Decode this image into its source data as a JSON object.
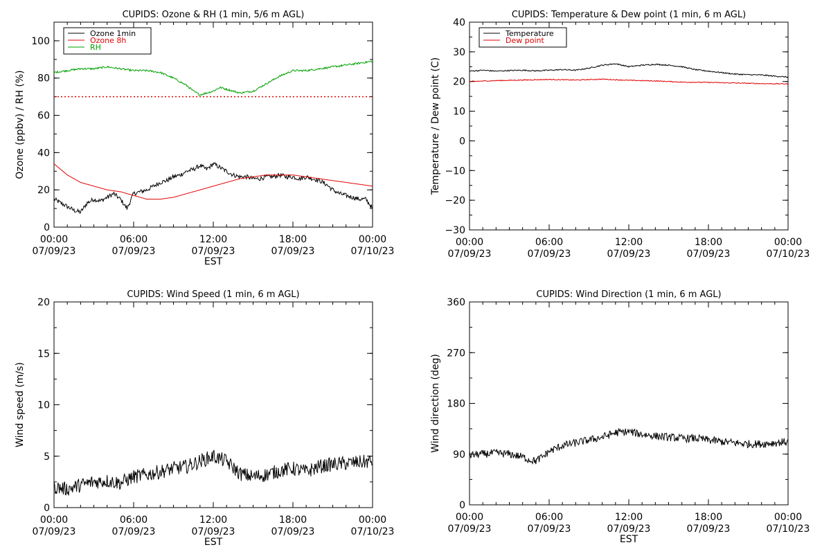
{
  "chart_data": [
    {
      "type": "line",
      "title": "CUPIDS: Ozone & RH (1 min, 5/6 m AGL)",
      "xlabel": "EST",
      "ylabel": "Ozone (ppbv) / RH (%)",
      "xlim": [
        "07/09/23 00:00",
        "07/10/23 00:00"
      ],
      "ylim": [
        0,
        110
      ],
      "x_ticks": [
        {
          "time": "00:00",
          "date": "07/09/23"
        },
        {
          "time": "06:00",
          "date": "07/09/23"
        },
        {
          "time": "12:00",
          "date": "07/09/23"
        },
        {
          "time": "18:00",
          "date": "07/09/23"
        },
        {
          "time": "00:00",
          "date": "07/10/23"
        }
      ],
      "y_ticks": [
        "0",
        "20",
        "40",
        "60",
        "80",
        "100"
      ],
      "y_tick_values": [
        0,
        20,
        40,
        60,
        80,
        100
      ],
      "legend_position": "top-left",
      "reference_line": {
        "y": 70,
        "color": "#e00000",
        "style": "dotted"
      },
      "series": [
        {
          "name": "Ozone 1min",
          "color": "#000000",
          "noise": 1.2,
          "hours": [
            0,
            0.5,
            1,
            1.5,
            2,
            2.5,
            3,
            3.5,
            4,
            4.5,
            5,
            5.5,
            6,
            6.5,
            7,
            7.5,
            8,
            8.5,
            9,
            9.5,
            10,
            10.5,
            11,
            11.5,
            12,
            12.5,
            13,
            13.5,
            14,
            14.5,
            15,
            15.5,
            16,
            16.5,
            17,
            17.5,
            18,
            18.5,
            19,
            19.5,
            20,
            20.5,
            21,
            21.5,
            22,
            22.5,
            23,
            23.5,
            24
          ],
          "values": [
            15,
            13,
            11,
            9,
            8,
            13,
            15,
            14,
            16,
            18,
            15,
            10,
            18,
            19,
            20,
            22,
            24,
            25,
            27,
            28,
            30,
            31,
            33,
            31,
            34,
            32,
            30,
            28,
            27,
            27,
            26,
            26,
            27,
            27,
            28,
            27,
            27,
            26,
            27,
            26,
            25,
            23,
            20,
            18,
            17,
            16,
            15,
            15,
            10
          ]
        },
        {
          "name": "Ozone 8h",
          "color": "#e00000",
          "noise": 0,
          "hours": [
            0,
            1,
            2,
            3,
            4,
            5,
            6,
            7,
            8,
            9,
            10,
            11,
            12,
            13,
            14,
            15,
            16,
            17,
            18,
            19,
            20,
            21,
            22,
            23,
            24
          ],
          "values": [
            34,
            28,
            24,
            22,
            20,
            19,
            17,
            15,
            15,
            16,
            18,
            20,
            22,
            24,
            26,
            27,
            28,
            28,
            28,
            27,
            26,
            25,
            24,
            23,
            22
          ]
        },
        {
          "name": "RH",
          "color": "#00a000",
          "noise": 0.5,
          "hours": [
            0,
            1,
            2,
            3,
            4,
            5,
            6,
            7,
            8,
            9,
            10,
            10.5,
            11,
            11.5,
            12,
            12.5,
            13,
            13.5,
            14,
            15,
            16,
            17,
            18,
            19,
            20,
            21,
            22,
            23,
            24
          ],
          "values": [
            83,
            84,
            85,
            85,
            86,
            85,
            84,
            84,
            83,
            80,
            76,
            73,
            71,
            72,
            73,
            75,
            74,
            73,
            72,
            73,
            77,
            81,
            84,
            84,
            85,
            86,
            87,
            88,
            89
          ]
        }
      ]
    },
    {
      "type": "line",
      "title": "CUPIDS: Temperature & Dew point (1 min, 6 m AGL)",
      "xlabel": "",
      "ylabel": "Temperature / Dew point (C)",
      "xlim": [
        "07/09/23 00:00",
        "07/10/23 00:00"
      ],
      "ylim": [
        -30,
        40
      ],
      "x_ticks": [
        {
          "time": "00:00",
          "date": "07/09/23"
        },
        {
          "time": "06:00",
          "date": "07/09/23"
        },
        {
          "time": "12:00",
          "date": "07/09/23"
        },
        {
          "time": "18:00",
          "date": "07/09/23"
        },
        {
          "time": "00:00",
          "date": "07/10/23"
        }
      ],
      "y_ticks": [
        "−30",
        "−20",
        "−10",
        "0",
        "10",
        "20",
        "30",
        "40"
      ],
      "y_tick_values": [
        -30,
        -20,
        -10,
        0,
        10,
        20,
        30,
        40
      ],
      "legend_position": "top-left",
      "series": [
        {
          "name": "Temperature",
          "color": "#000000",
          "noise": 0.2,
          "hours": [
            0,
            1,
            2,
            3,
            4,
            5,
            6,
            7,
            8,
            9,
            10,
            11,
            12,
            13,
            14,
            15,
            16,
            17,
            18,
            19,
            20,
            21,
            22,
            23,
            24
          ],
          "values": [
            23.5,
            23.8,
            23.5,
            23.7,
            23.8,
            23.6,
            23.8,
            24,
            23.8,
            24.5,
            25.5,
            26,
            25,
            25.5,
            25.8,
            25.5,
            25,
            24,
            23.5,
            23,
            22.5,
            22.3,
            22.2,
            21.8,
            21.5
          ]
        },
        {
          "name": "Dew point",
          "color": "#e00000",
          "noise": 0.15,
          "hours": [
            0,
            2,
            4,
            6,
            8,
            10,
            12,
            14,
            16,
            18,
            20,
            22,
            24
          ],
          "values": [
            20,
            20.3,
            20.5,
            20.7,
            20.5,
            20.8,
            20.4,
            20.2,
            19.8,
            19.7,
            19.5,
            19.3,
            19.2
          ]
        }
      ]
    },
    {
      "type": "line",
      "title": "CUPIDS: Wind Speed (1 min, 6 m AGL)",
      "xlabel": "EST",
      "ylabel": "Wind speed (m/s)",
      "xlim": [
        "07/09/23 00:00",
        "07/10/23 00:00"
      ],
      "ylim": [
        0,
        20
      ],
      "x_ticks": [
        {
          "time": "00:00",
          "date": "07/09/23"
        },
        {
          "time": "06:00",
          "date": "07/09/23"
        },
        {
          "time": "12:00",
          "date": "07/09/23"
        },
        {
          "time": "18:00",
          "date": "07/09/23"
        },
        {
          "time": "00:00",
          "date": "07/10/23"
        }
      ],
      "y_ticks": [
        "0",
        "5",
        "10",
        "15",
        "20"
      ],
      "y_tick_values": [
        0,
        5,
        10,
        15,
        20
      ],
      "series": [
        {
          "name": "",
          "color": "#000000",
          "noise": 0.7,
          "hours": [
            0,
            1,
            2,
            3,
            4,
            5,
            6,
            7,
            8,
            9,
            10,
            11,
            12,
            13,
            14,
            15,
            16,
            17,
            18,
            19,
            20,
            21,
            22,
            23,
            24
          ],
          "values": [
            2,
            1.8,
            2.2,
            2.5,
            2.6,
            2.4,
            3,
            3.2,
            3.5,
            3.8,
            4,
            4.5,
            5,
            4.5,
            3.3,
            3,
            3.2,
            3.6,
            3.8,
            3.5,
            4,
            4.2,
            4.3,
            4.4,
            4.5
          ]
        }
      ]
    },
    {
      "type": "line",
      "title": "CUPIDS: Wind Direction (1 min, 6 m AGL)",
      "xlabel": "EST",
      "ylabel": "Wind direction (deg)",
      "xlim": [
        "07/09/23 00:00",
        "07/10/23 00:00"
      ],
      "ylim": [
        0,
        360
      ],
      "x_ticks": [
        {
          "time": "00:00",
          "date": "07/09/23"
        },
        {
          "time": "06:00",
          "date": "07/09/23"
        },
        {
          "time": "12:00",
          "date": "07/09/23"
        },
        {
          "time": "18:00",
          "date": "07/09/23"
        },
        {
          "time": "00:00",
          "date": "07/10/23"
        }
      ],
      "y_ticks": [
        "0",
        "90",
        "180",
        "270",
        "360"
      ],
      "y_tick_values": [
        0,
        90,
        180,
        270,
        360
      ],
      "series": [
        {
          "name": "",
          "color": "#000000",
          "noise": 7,
          "hours": [
            0,
            1,
            2,
            3,
            4,
            4.5,
            5,
            5.5,
            6,
            7,
            8,
            9,
            10,
            11,
            12,
            13,
            14,
            15,
            16,
            17,
            18,
            19,
            20,
            21,
            22,
            23,
            24
          ],
          "values": [
            88,
            90,
            92,
            90,
            85,
            80,
            78,
            85,
            95,
            105,
            110,
            115,
            120,
            128,
            130,
            125,
            122,
            120,
            118,
            118,
            115,
            112,
            110,
            108,
            108,
            110,
            112
          ]
        }
      ]
    }
  ]
}
